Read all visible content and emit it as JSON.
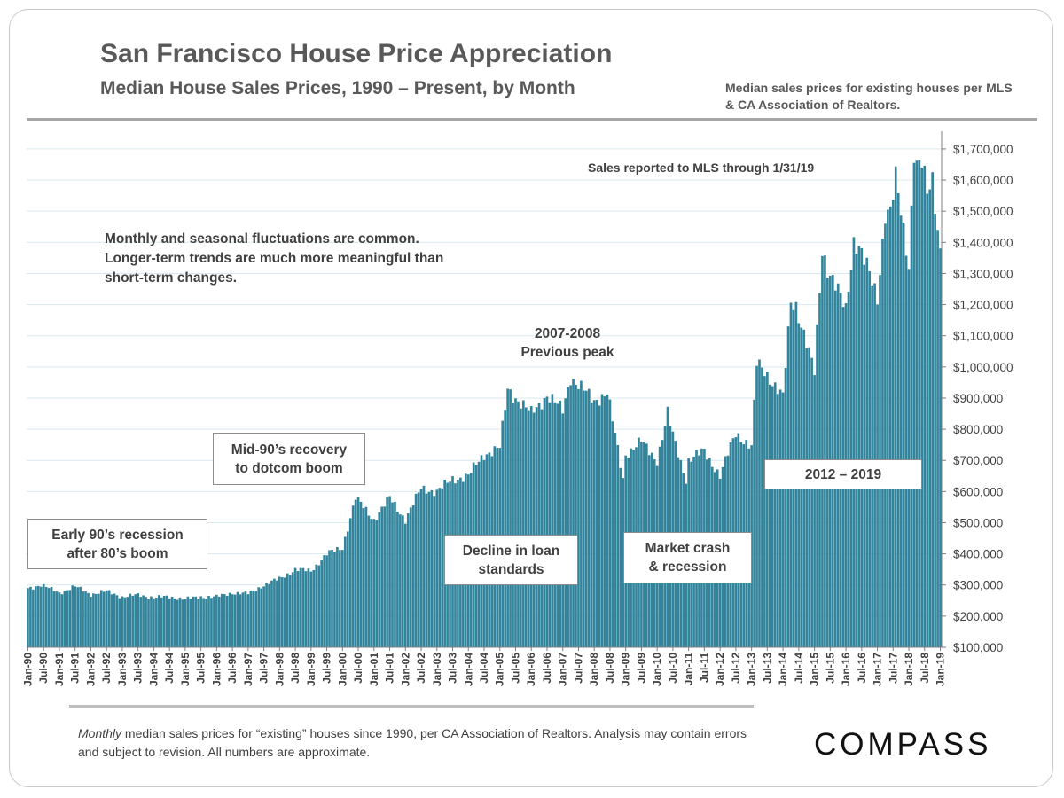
{
  "header": {
    "title": "San Francisco House Price Appreciation",
    "subtitle": "Median House Sales Prices, 1990 – Present, by Month",
    "source_note": "Median sales prices for existing houses per MLS & CA Association of Realtors."
  },
  "annotations": {
    "mls_note": "Sales reported to MLS through 1/31/19",
    "fluctuation_note": "Monthly and seasonal fluctuations are common. Longer-term trends are much more meaningful than short-term changes.",
    "early90s_line1": "Early 90’s recession",
    "early90s_line2": "after 80’s boom",
    "mid90s_line1": "Mid-90’s recovery",
    "mid90s_line2": "to dotcom boom",
    "peak_line1": "2007-2008",
    "peak_line2": "Previous peak",
    "loan_line1": "Decline in loan",
    "loan_line2": "standards",
    "crash_line1": "Market crash",
    "crash_line2": "& recession",
    "recent": "2012 – 2019"
  },
  "footer": {
    "text_italic": "Monthly",
    "text_rest": " median sales prices for “existing” houses since 1990, per CA Association of Realtors.  Analysis may contain errors and subject to revision. All numbers are approximate.",
    "logo": "COMPASS"
  },
  "colors": {
    "bar": "#31849B",
    "grid": "#d9e9ee",
    "axis": "#7f7f7f",
    "text": "#404040"
  },
  "chart_data": {
    "type": "bar",
    "start": "Jan-90",
    "end": "Jan-19",
    "x_tick_labels": [
      "Jan-90",
      "Jul-90",
      "Jan-91",
      "Jul-91",
      "Jan-92",
      "Jul-92",
      "Jan-93",
      "Jul-93",
      "Jan-94",
      "Jul-94",
      "Jan-95",
      "Jul-95",
      "Jan-96",
      "Jul-96",
      "Jan-97",
      "Jul-97",
      "Jan-98",
      "Jul-98",
      "Jan-99",
      "Jul-99",
      "Jan-00",
      "Jul-00",
      "Jan-01",
      "Jul-01",
      "Jan-02",
      "Jul-02",
      "Jan-03",
      "Jul-03",
      "Jan-04",
      "Jul-04",
      "Jan-05",
      "Jul-05",
      "Jan-06",
      "Jul-06",
      "Jan-07",
      "Jul-07",
      "Jan-08",
      "Jul-08",
      "Jan-09",
      "Jul-09",
      "Jan-10",
      "Jul-10",
      "Jan-11",
      "Jul-11",
      "Jan-12",
      "Jul-12",
      "Jan-13",
      "Jul-13",
      "Jan-14",
      "Jul-14",
      "Jan-15",
      "Jul-15",
      "Jan-16",
      "Jul-16",
      "Jan-17",
      "Jul-17",
      "Jan-18",
      "Jul-18",
      "Jan-19"
    ],
    "y_tick_labels": [
      "$100,000",
      "$200,000",
      "$300,000",
      "$400,000",
      "$500,000",
      "$600,000",
      "$700,000",
      "$800,000",
      "$900,000",
      "$1,000,000",
      "$1,100,000",
      "$1,200,000",
      "$1,300,000",
      "$1,400,000",
      "$1,500,000",
      "$1,600,000",
      "$1,700,000"
    ],
    "y_ticks": [
      100000,
      200000,
      300000,
      400000,
      500000,
      600000,
      700000,
      800000,
      900000,
      1000000,
      1100000,
      1200000,
      1300000,
      1400000,
      1500000,
      1600000,
      1700000
    ],
    "ylim": [
      100000,
      1750000
    ],
    "grid": true,
    "yaxis_side": "right",
    "anchors": [
      [
        "1990-01",
        290000
      ],
      [
        "1990-06",
        300000
      ],
      [
        "1991-01",
        275000
      ],
      [
        "1991-07",
        295000
      ],
      [
        "1992-01",
        270000
      ],
      [
        "1992-07",
        280000
      ],
      [
        "1993-01",
        262000
      ],
      [
        "1993-07",
        268000
      ],
      [
        "1994-01",
        260000
      ],
      [
        "1994-07",
        262000
      ],
      [
        "1995-01",
        255000
      ],
      [
        "1995-07",
        262000
      ],
      [
        "1996-01",
        262000
      ],
      [
        "1996-07",
        275000
      ],
      [
        "1997-01",
        272000
      ],
      [
        "1997-07",
        300000
      ],
      [
        "1998-01",
        320000
      ],
      [
        "1998-07",
        350000
      ],
      [
        "1999-01",
        345000
      ],
      [
        "1999-07",
        400000
      ],
      [
        "2000-01",
        420000
      ],
      [
        "2000-06",
        580000
      ],
      [
        "2001-01",
        510000
      ],
      [
        "2001-07",
        580000
      ],
      [
        "2002-01",
        510000
      ],
      [
        "2002-07",
        610000
      ],
      [
        "2003-01",
        600000
      ],
      [
        "2003-07",
        640000
      ],
      [
        "2004-01",
        650000
      ],
      [
        "2004-07",
        720000
      ],
      [
        "2005-01",
        740000
      ],
      [
        "2005-06",
        910000
      ],
      [
        "2006-01",
        850000
      ],
      [
        "2006-07",
        910000
      ],
      [
        "2007-01",
        860000
      ],
      [
        "2007-06",
        950000
      ],
      [
        "2008-01",
        890000
      ],
      [
        "2008-06",
        920000
      ],
      [
        "2009-01",
        720000
      ],
      [
        "2009-07",
        760000
      ],
      [
        "2010-01",
        700000
      ],
      [
        "2010-07",
        780000
      ],
      [
        "2011-01",
        700000
      ],
      [
        "2011-07",
        730000
      ],
      [
        "2012-01",
        680000
      ],
      [
        "2012-07",
        790000
      ],
      [
        "2013-01",
        760000
      ],
      [
        "2013-06",
        990000
      ],
      [
        "2014-01",
        900000
      ],
      [
        "2014-06",
        1200000
      ],
      [
        "2015-01",
        1050000
      ],
      [
        "2015-06",
        1320000
      ],
      [
        "2016-01",
        1250000
      ],
      [
        "2016-06",
        1390000
      ],
      [
        "2017-01",
        1260000
      ],
      [
        "2017-06",
        1500000
      ],
      [
        "2018-01",
        1450000
      ],
      [
        "2018-04",
        1650000
      ],
      [
        "2018-08",
        1550000
      ],
      [
        "2019-01",
        1380000
      ]
    ],
    "peaks": [
      [
        "2000-06",
        580000
      ],
      [
        "2005-04",
        930000
      ],
      [
        "2007-04",
        970000
      ],
      [
        "2010-05",
        850000
      ],
      [
        "2013-03",
        1010000
      ],
      [
        "2014-04",
        1210000
      ],
      [
        "2015-04",
        1380000
      ],
      [
        "2016-04",
        1410000
      ],
      [
        "2017-04",
        1500000
      ],
      [
        "2017-08",
        1600000
      ],
      [
        "2018-03",
        1700000
      ],
      [
        "2018-06",
        1650000
      ],
      [
        "2018-10",
        1600000
      ]
    ],
    "troughs": [
      [
        "2000-01",
        420000
      ],
      [
        "2008-12",
        640000
      ],
      [
        "2010-12",
        640000
      ],
      [
        "2012-01",
        650000
      ],
      [
        "2013-01",
        740000
      ],
      [
        "2015-01",
        980000
      ],
      [
        "2016-01",
        1180000
      ],
      [
        "2017-01",
        1220000
      ],
      [
        "2018-01",
        1330000
      ]
    ]
  }
}
